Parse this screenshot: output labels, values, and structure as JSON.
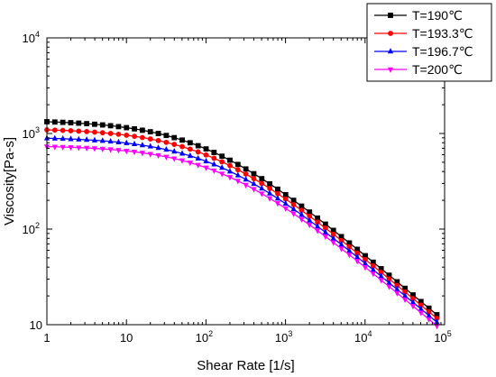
{
  "chart_data": {
    "type": "line",
    "xlabel": "Shear Rate [1/s]",
    "ylabel": "Viscosity[Pa-s]",
    "x_scale": "log",
    "y_scale": "log",
    "xlim": [
      1,
      100000
    ],
    "ylim": [
      10,
      10000
    ],
    "x_ticks": [
      {
        "value": 1,
        "base": "1",
        "exp": ""
      },
      {
        "value": 10,
        "base": "10",
        "exp": ""
      },
      {
        "value": 100,
        "base": "10",
        "exp": "2"
      },
      {
        "value": 1000,
        "base": "10",
        "exp": "3"
      },
      {
        "value": 10000,
        "base": "10",
        "exp": "4"
      },
      {
        "value": 100000,
        "base": "10",
        "exp": "5"
      }
    ],
    "y_ticks": [
      {
        "value": 10,
        "base": "10",
        "exp": ""
      },
      {
        "value": 100,
        "base": "10",
        "exp": "2"
      },
      {
        "value": 1000,
        "base": "10",
        "exp": "3"
      },
      {
        "value": 10000,
        "base": "10",
        "exp": "4"
      }
    ],
    "legend_placement": "top-right",
    "grid": false,
    "series": [
      {
        "name": "T=190℃",
        "color": "#000000",
        "marker": "square",
        "eta0": 1380,
        "lambda": 0.01,
        "n": 0.3,
        "x_max": 80000
      },
      {
        "name": "T=193.3℃",
        "color": "#ff0000",
        "marker": "circle",
        "eta0": 1130,
        "lambda": 0.0085,
        "n": 0.3,
        "x_max": 80000
      },
      {
        "name": "T=196.7℃",
        "color": "#0000ff",
        "marker": "triangle",
        "eta0": 920,
        "lambda": 0.0072,
        "n": 0.3,
        "x_max": 80000
      },
      {
        "name": "T=200℃",
        "color": "#ff00ff",
        "marker": "triangle-down",
        "eta0": 750,
        "lambda": 0.0061,
        "n": 0.3,
        "x_max": 80000
      }
    ]
  }
}
